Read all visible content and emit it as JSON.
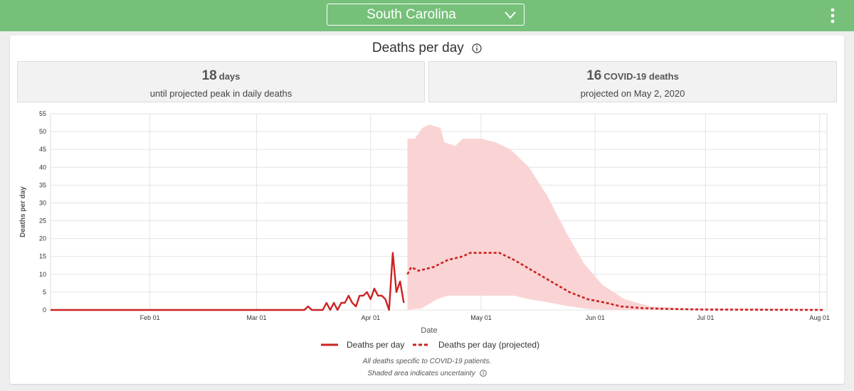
{
  "header": {
    "state": "South Carolina",
    "state_dropdown_icon": "chevron-down-icon",
    "menu_icon": "kebab-menu-icon"
  },
  "card": {
    "title": "Deaths per day",
    "title_icon": "info-icon",
    "stat_left": {
      "number": "18",
      "unit": "days",
      "caption": "until projected peak in daily deaths"
    },
    "stat_right": {
      "number": "16",
      "unit": "COVID-19 deaths",
      "caption": "projected on May 2, 2020"
    },
    "footnote_1": "All deaths specific to COVID-19 patients.",
    "footnote_2": "Shaded area indicates uncertainty"
  },
  "colors": {
    "header": "#76c07a",
    "line": "#cc2222",
    "band": "#fad4d4"
  },
  "chart_data": {
    "type": "line",
    "xlabel": "Date",
    "ylabel": "Deaths per day",
    "ylim": [
      0,
      55
    ],
    "yticks": [
      0,
      5,
      10,
      15,
      20,
      25,
      30,
      35,
      40,
      45,
      50,
      55
    ],
    "xlim": [
      "2020-01-05",
      "2020-08-03"
    ],
    "xticks": [
      {
        "date": "2020-02-01",
        "label": "Feb 01"
      },
      {
        "date": "2020-03-01",
        "label": "Mar 01"
      },
      {
        "date": "2020-04-01",
        "label": "Apr 01"
      },
      {
        "date": "2020-05-01",
        "label": "May 01"
      },
      {
        "date": "2020-06-01",
        "label": "Jun 01"
      },
      {
        "date": "2020-07-01",
        "label": "Jul 01"
      },
      {
        "date": "2020-08-01",
        "label": "Aug 01"
      }
    ],
    "grid": true,
    "legend_position": "bottom",
    "series": [
      {
        "name": "Deaths per day",
        "style": "solid",
        "points": [
          [
            "2020-01-05",
            0
          ],
          [
            "2020-03-14",
            0
          ],
          [
            "2020-03-15",
            1
          ],
          [
            "2020-03-16",
            0
          ],
          [
            "2020-03-18",
            0
          ],
          [
            "2020-03-19",
            0
          ],
          [
            "2020-03-20",
            2
          ],
          [
            "2020-03-21",
            0
          ],
          [
            "2020-03-22",
            2
          ],
          [
            "2020-03-23",
            0
          ],
          [
            "2020-03-24",
            2
          ],
          [
            "2020-03-25",
            2
          ],
          [
            "2020-03-26",
            4
          ],
          [
            "2020-03-27",
            2
          ],
          [
            "2020-03-28",
            1
          ],
          [
            "2020-03-29",
            4
          ],
          [
            "2020-03-30",
            4
          ],
          [
            "2020-03-31",
            5
          ],
          [
            "2020-04-01",
            3
          ],
          [
            "2020-04-02",
            6
          ],
          [
            "2020-04-03",
            4
          ],
          [
            "2020-04-04",
            4
          ],
          [
            "2020-04-05",
            3
          ],
          [
            "2020-04-06",
            0
          ],
          [
            "2020-04-07",
            16
          ],
          [
            "2020-04-08",
            5
          ],
          [
            "2020-04-09",
            8
          ],
          [
            "2020-04-10",
            2
          ]
        ]
      },
      {
        "name": "Deaths per day (projected)",
        "style": "dashed",
        "points": [
          [
            "2020-04-11",
            10
          ],
          [
            "2020-04-12",
            12
          ],
          [
            "2020-04-14",
            11
          ],
          [
            "2020-04-18",
            12
          ],
          [
            "2020-04-22",
            14
          ],
          [
            "2020-04-26",
            15
          ],
          [
            "2020-04-28",
            16
          ],
          [
            "2020-05-02",
            16
          ],
          [
            "2020-05-06",
            16
          ],
          [
            "2020-05-10",
            14
          ],
          [
            "2020-05-15",
            11
          ],
          [
            "2020-05-20",
            8
          ],
          [
            "2020-05-25",
            5
          ],
          [
            "2020-05-30",
            3
          ],
          [
            "2020-06-04",
            2
          ],
          [
            "2020-06-08",
            1
          ],
          [
            "2020-06-14",
            0.5
          ],
          [
            "2020-06-20",
            0.3
          ],
          [
            "2020-07-01",
            0.1
          ],
          [
            "2020-08-02",
            0
          ]
        ]
      }
    ],
    "uncertainty": {
      "upper": [
        [
          "2020-04-11",
          48
        ],
        [
          "2020-04-13",
          48
        ],
        [
          "2020-04-15",
          51
        ],
        [
          "2020-04-17",
          52
        ],
        [
          "2020-04-20",
          51
        ],
        [
          "2020-04-21",
          47
        ],
        [
          "2020-04-24",
          46
        ],
        [
          "2020-04-26",
          48
        ],
        [
          "2020-05-01",
          48
        ],
        [
          "2020-05-05",
          47
        ],
        [
          "2020-05-09",
          45
        ],
        [
          "2020-05-14",
          40
        ],
        [
          "2020-05-19",
          32
        ],
        [
          "2020-05-24",
          22
        ],
        [
          "2020-05-29",
          13
        ],
        [
          "2020-06-03",
          7
        ],
        [
          "2020-06-09",
          3
        ],
        [
          "2020-06-16",
          1
        ],
        [
          "2020-06-25",
          0.5
        ],
        [
          "2020-08-02",
          0.3
        ]
      ],
      "lower": [
        [
          "2020-04-11",
          0
        ],
        [
          "2020-04-15",
          0.5
        ],
        [
          "2020-04-19",
          3
        ],
        [
          "2020-04-22",
          4
        ],
        [
          "2020-05-10",
          4
        ],
        [
          "2020-05-14",
          3
        ],
        [
          "2020-05-20",
          2
        ],
        [
          "2020-05-25",
          1
        ],
        [
          "2020-05-30",
          0.3
        ],
        [
          "2020-06-05",
          0
        ],
        [
          "2020-08-02",
          0
        ]
      ]
    }
  }
}
